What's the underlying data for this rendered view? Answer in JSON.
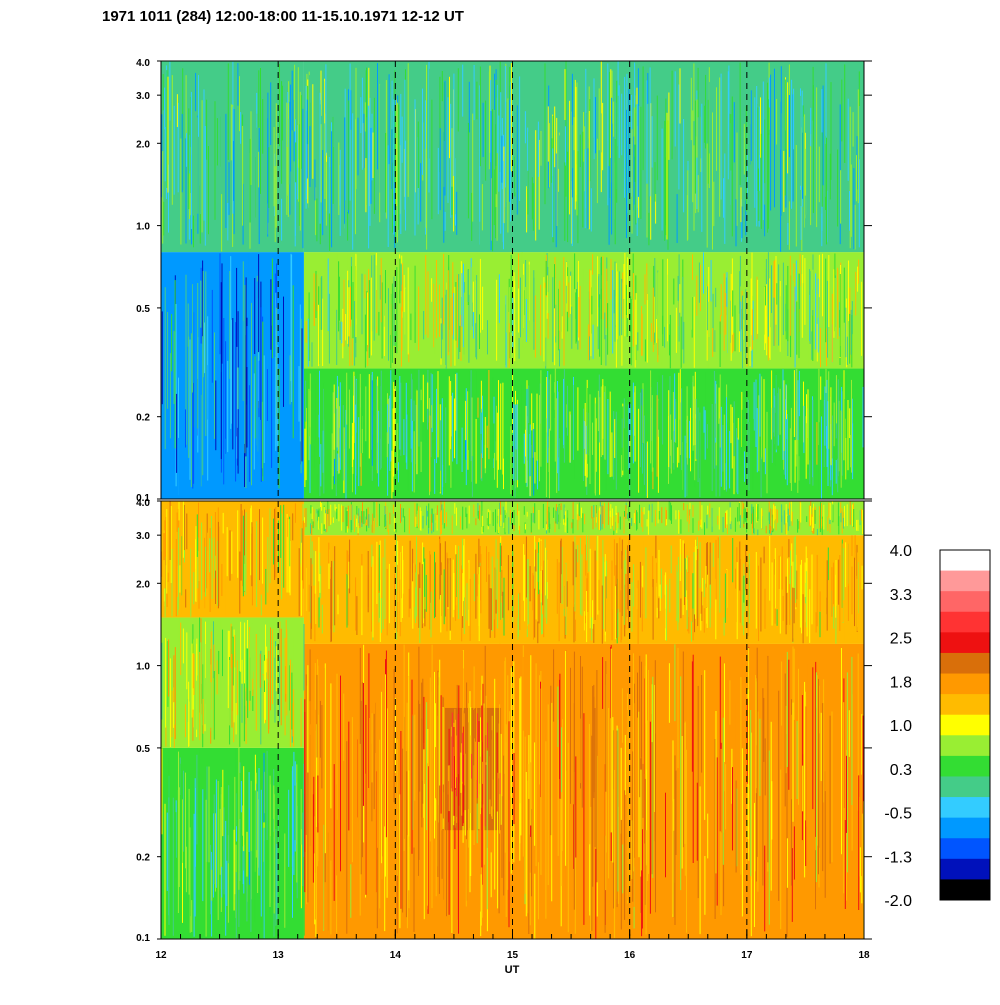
{
  "chart_data": {
    "type": "heatmap",
    "title": "1971 1011 (284) 12:00-18:00 11-15.10.1971  12-12 UT",
    "xlabel": "UT",
    "x_ticks": [
      "12",
      "13",
      "14",
      "15",
      "16",
      "17",
      "18"
    ],
    "xlim": [
      12,
      18
    ],
    "x_dashed_lines": [
      13,
      14,
      15,
      16,
      17
    ],
    "y_scale": "log",
    "ylim": [
      0.1,
      4.0
    ],
    "y_ticks": [
      "0.1",
      "0.2",
      "0.5",
      "1.0",
      "2.0",
      "3.0",
      "4.0"
    ],
    "panels": [
      {
        "id": "upper",
        "description_regions": [
          {
            "x": [
              12.0,
              13.22
            ],
            "y": [
              0.1,
              0.8
            ],
            "value": -0.7
          },
          {
            "x": [
              12.0,
              13.22
            ],
            "y": [
              0.8,
              4.0
            ],
            "value": 0.0
          },
          {
            "x": [
              13.22,
              18.0
            ],
            "y": [
              0.3,
              0.8
            ],
            "value": 0.6
          },
          {
            "x": [
              13.22,
              18.0
            ],
            "y": [
              0.1,
              0.3
            ],
            "value": 0.3
          },
          {
            "x": [
              13.22,
              18.0
            ],
            "y": [
              0.8,
              4.0
            ],
            "value": 0.1
          }
        ]
      },
      {
        "id": "lower",
        "description_regions": [
          {
            "x": [
              12.0,
              13.22
            ],
            "y": [
              0.1,
              0.5
            ],
            "value": 0.2
          },
          {
            "x": [
              12.0,
              13.22
            ],
            "y": [
              0.5,
              1.5
            ],
            "value": 0.8
          },
          {
            "x": [
              12.0,
              13.22
            ],
            "y": [
              1.5,
              4.0
            ],
            "value": 1.3
          },
          {
            "x": [
              13.22,
              18.0
            ],
            "y": [
              0.1,
              1.2
            ],
            "value": 1.6
          },
          {
            "x": [
              14.4,
              14.9
            ],
            "y": [
              0.25,
              0.7
            ],
            "value": 2.0
          },
          {
            "x": [
              13.22,
              18.0
            ],
            "y": [
              1.2,
              3.0
            ],
            "value": 1.3
          },
          {
            "x": [
              13.22,
              18.0
            ],
            "y": [
              3.0,
              4.0
            ],
            "value": 0.8
          }
        ]
      }
    ],
    "colorbar": {
      "labels": [
        "4.0",
        "3.3",
        "2.5",
        "1.8",
        "1.0",
        "0.3",
        "-0.5",
        "-1.3",
        "-2.0"
      ],
      "colors_top_to_bottom": [
        "#ffffff",
        "#ff9999",
        "#ff6666",
        "#ff3333",
        "#ee1111",
        "#d96f0a",
        "#ff9900",
        "#ffbb00",
        "#ffff00",
        "#99ee33",
        "#33dd33",
        "#44cc88",
        "#33ccff",
        "#0099ff",
        "#0055ff",
        "#0011bb",
        "#000000"
      ]
    }
  }
}
